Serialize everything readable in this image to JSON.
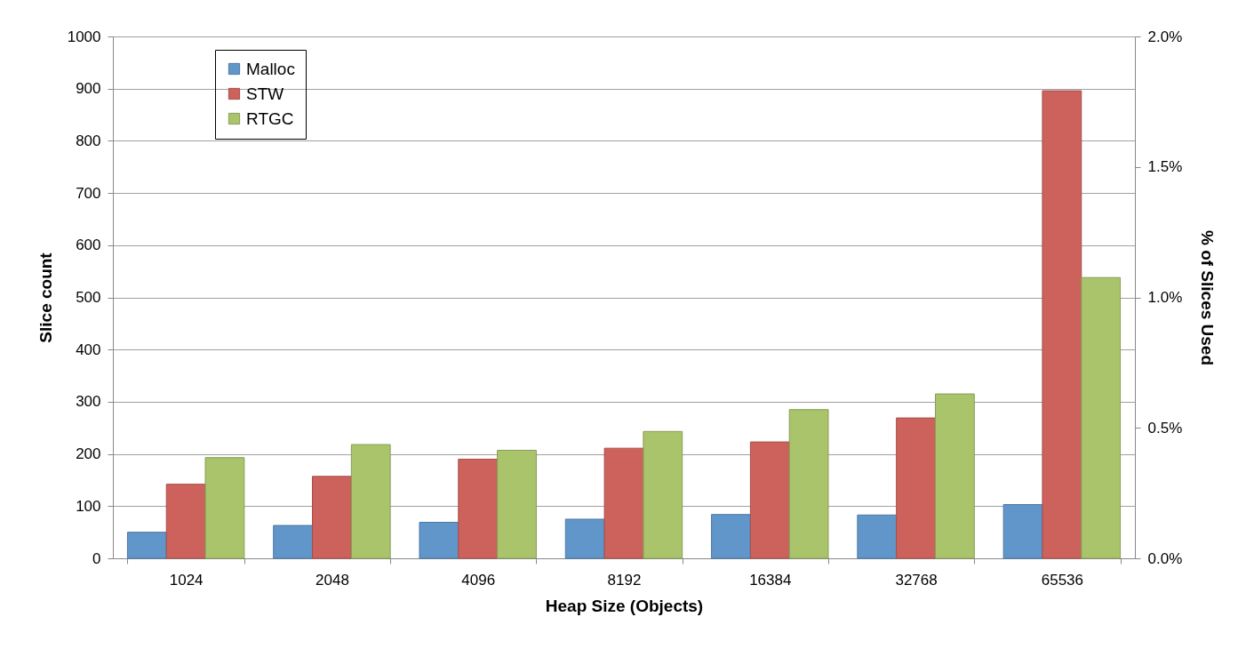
{
  "chart_data": {
    "type": "bar",
    "xlabel": "Heap Size (Objects)",
    "ylabel": "Slice count",
    "y2label": "% of Slices Used",
    "categories": [
      "1024",
      "2048",
      "4096",
      "8192",
      "16384",
      "32768",
      "65536"
    ],
    "series": [
      {
        "name": "Malloc",
        "color": "#6096c9",
        "values": [
          50,
          63,
          69,
          75,
          84,
          83,
          103
        ]
      },
      {
        "name": "STW",
        "color": "#cd625c",
        "values": [
          142,
          157,
          190,
          211,
          223,
          269,
          896
        ]
      },
      {
        "name": "RTGC",
        "color": "#a9c46b",
        "values": [
          193,
          218,
          207,
          243,
          285,
          315,
          538
        ]
      }
    ],
    "ylim": [
      0,
      1000
    ],
    "yticks": [
      0,
      100,
      200,
      300,
      400,
      500,
      600,
      700,
      800,
      900,
      1000
    ],
    "y2lim": [
      0,
      2
    ],
    "y2ticks": [
      {
        "value": 0,
        "label": "0.0%"
      },
      {
        "value": 0.5,
        "label": "0.5%"
      },
      {
        "value": 1,
        "label": "1.0%"
      },
      {
        "value": 1.5,
        "label": "1.5%"
      },
      {
        "value": 2,
        "label": "2.0%"
      }
    ],
    "grid": "y",
    "legend": "top left"
  }
}
